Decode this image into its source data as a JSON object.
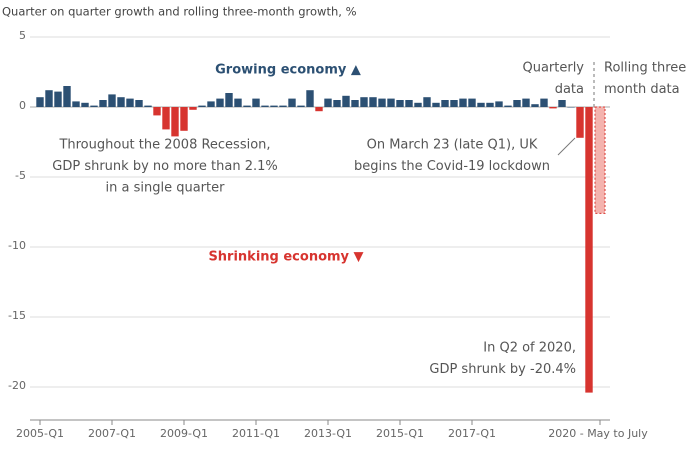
{
  "chart_data": {
    "type": "bar",
    "title": "Quarter on quarter growth and rolling three-month growth, %",
    "categories": [
      "2005-Q1",
      null,
      null,
      null,
      null,
      null,
      null,
      null,
      "2007-Q1",
      null,
      null,
      null,
      null,
      null,
      null,
      null,
      "2009-Q1",
      null,
      null,
      null,
      null,
      null,
      null,
      null,
      "2011-Q1",
      null,
      null,
      null,
      null,
      null,
      null,
      null,
      "2013-Q1",
      null,
      null,
      null,
      null,
      null,
      null,
      null,
      "2015-Q1",
      null,
      null,
      null,
      null,
      null,
      null,
      null,
      "2017-Q1",
      null,
      null,
      null,
      null,
      null,
      null,
      null,
      null,
      null,
      null,
      null,
      null,
      null
    ],
    "values": [
      0.7,
      1.2,
      1.1,
      1.5,
      0.4,
      0.3,
      0.1,
      0.5,
      0.9,
      0.7,
      0.6,
      0.5,
      0.1,
      -0.6,
      -1.6,
      -2.1,
      -1.7,
      -0.2,
      0.1,
      0.4,
      0.6,
      1.0,
      0.6,
      0.1,
      0.6,
      0.1,
      0.1,
      0.1,
      0.6,
      0.1,
      1.2,
      -0.3,
      0.6,
      0.5,
      0.8,
      0.5,
      0.7,
      0.7,
      0.6,
      0.6,
      0.5,
      0.5,
      0.3,
      0.7,
      0.3,
      0.5,
      0.5,
      0.6,
      0.6,
      0.3,
      0.3,
      0.4,
      0.1,
      0.5,
      0.6,
      0.2,
      0.6,
      -0.1,
      0.5,
      0.0,
      -2.2,
      -20.4
    ],
    "color_positive": "#2c5073",
    "color_negative": "#d7342f",
    "rolling": {
      "category": "2020 - May to July",
      "value": -7.6,
      "color": "#f4b3ae",
      "edge": "#d7342f"
    },
    "ylim": [
      -21.3,
      5
    ],
    "yticks": [
      5,
      0,
      -5,
      -10,
      -15,
      -20
    ],
    "grid": true,
    "annotations": {
      "growing": "Growing economy ▲",
      "shrinking": "Shrinking economy ▼",
      "recession": [
        "Throughout the 2008 Recession,",
        "GDP shrunk by no more than 2.1%",
        "in a single quarter"
      ],
      "lockdown": [
        "On March 23 (late Q1), UK",
        "begins the Covid-19 lockdown"
      ],
      "q2": [
        "In Q2 of 2020,",
        "GDP shrunk by -20.4%"
      ],
      "quarterly": [
        "Quarterly",
        "data"
      ],
      "rolling": [
        "Rolling three",
        "month data"
      ]
    }
  }
}
